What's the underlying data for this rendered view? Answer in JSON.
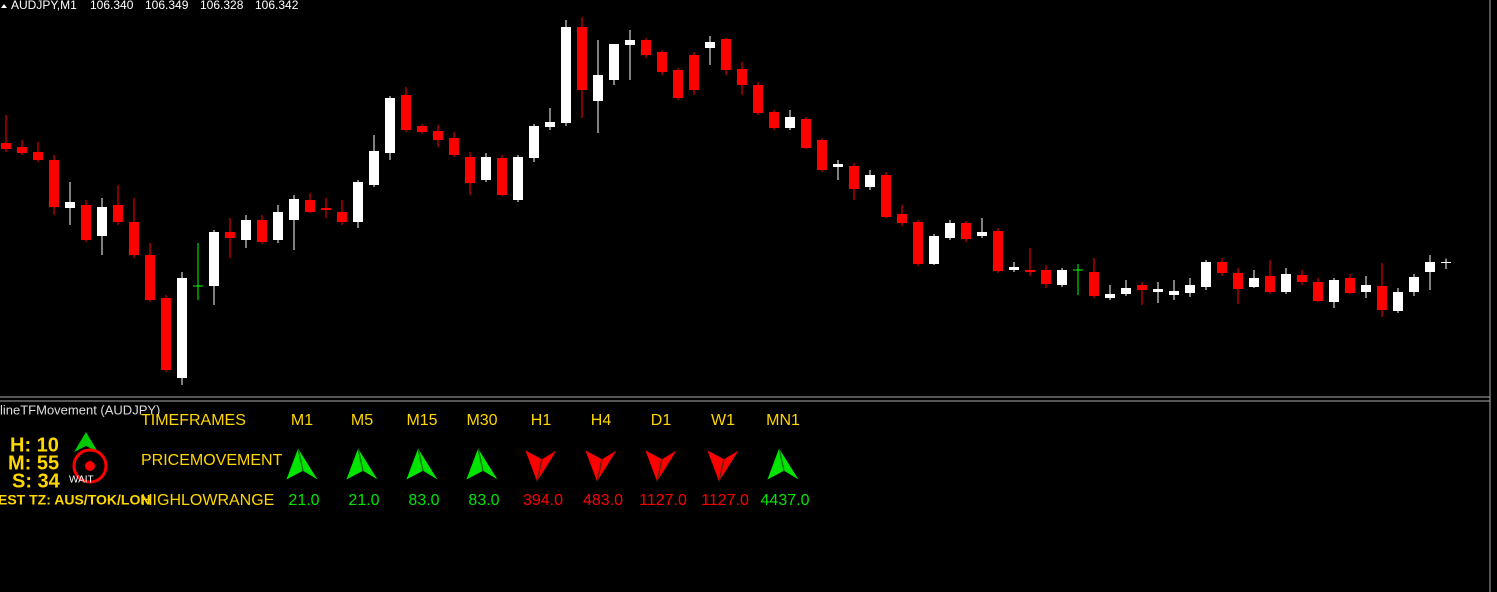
{
  "header": {
    "symbol": "AUDJPY,M1",
    "quote": [
      "106.340",
      "106.349",
      "106.328",
      "106.342"
    ]
  },
  "candles": {
    "ylim": [
      106.076,
      106.866
    ],
    "colors": {
      "up": "#ffffff",
      "down": "#ff0000",
      "flat": "#00ff00"
    },
    "items": [
      [
        106.58,
        106.636,
        106.562,
        106.568
      ],
      [
        106.572,
        106.586,
        106.556,
        106.56
      ],
      [
        106.562,
        106.582,
        106.542,
        106.546
      ],
      [
        106.546,
        106.556,
        106.436,
        106.452
      ],
      [
        106.45,
        106.502,
        106.416,
        106.462
      ],
      [
        106.456,
        106.466,
        106.382,
        106.386
      ],
      [
        106.394,
        106.47,
        106.356,
        106.452
      ],
      [
        106.456,
        106.496,
        106.416,
        106.422
      ],
      [
        106.422,
        106.47,
        106.35,
        106.356
      ],
      [
        106.356,
        106.38,
        106.262,
        106.266
      ],
      [
        106.27,
        106.276,
        106.122,
        106.126
      ],
      [
        106.11,
        106.322,
        106.096,
        106.31
      ],
      [
        106.294,
        106.38,
        106.266,
        106.294
      ],
      [
        106.294,
        106.406,
        106.256,
        106.402
      ],
      [
        106.402,
        106.43,
        106.35,
        106.39
      ],
      [
        106.386,
        106.436,
        106.37,
        106.426
      ],
      [
        106.426,
        106.436,
        106.378,
        106.382
      ],
      [
        106.386,
        106.456,
        106.38,
        106.442
      ],
      [
        106.426,
        106.476,
        106.366,
        106.468
      ],
      [
        106.466,
        106.48,
        106.44,
        106.442
      ],
      [
        106.45,
        106.47,
        106.43,
        106.446
      ],
      [
        106.442,
        106.466,
        106.416,
        106.422
      ],
      [
        106.422,
        106.506,
        106.41,
        106.502
      ],
      [
        106.496,
        106.596,
        106.492,
        106.564
      ],
      [
        106.56,
        106.674,
        106.546,
        106.67
      ],
      [
        106.676,
        106.692,
        106.602,
        106.606
      ],
      [
        106.614,
        106.618,
        106.598,
        106.602
      ],
      [
        106.604,
        106.616,
        106.572,
        106.586
      ],
      [
        106.59,
        106.602,
        106.552,
        106.556
      ],
      [
        106.552,
        106.562,
        106.476,
        106.5
      ],
      [
        106.506,
        106.56,
        106.502,
        106.552
      ],
      [
        106.55,
        106.556,
        106.474,
        106.476
      ],
      [
        106.466,
        106.556,
        106.462,
        106.552
      ],
      [
        106.55,
        106.618,
        106.542,
        106.614
      ],
      [
        106.612,
        106.65,
        106.606,
        106.622
      ],
      [
        106.62,
        106.826,
        106.614,
        106.812
      ],
      [
        106.812,
        106.832,
        106.63,
        106.686
      ],
      [
        106.664,
        106.786,
        106.6,
        106.716
      ],
      [
        106.706,
        106.778,
        106.696,
        106.778
      ],
      [
        106.776,
        106.806,
        106.706,
        106.786
      ],
      [
        106.786,
        106.79,
        106.75,
        106.756
      ],
      [
        106.762,
        106.766,
        106.716,
        106.722
      ],
      [
        106.726,
        106.73,
        106.666,
        106.67
      ],
      [
        106.756,
        106.762,
        106.676,
        106.686
      ],
      [
        106.77,
        106.794,
        106.736,
        106.782
      ],
      [
        106.788,
        106.79,
        106.716,
        106.726
      ],
      [
        106.728,
        106.742,
        106.676,
        106.696
      ],
      [
        106.696,
        106.702,
        106.636,
        106.64
      ],
      [
        106.642,
        106.646,
        106.606,
        106.61
      ],
      [
        106.61,
        106.646,
        106.606,
        106.632
      ],
      [
        106.628,
        106.632,
        106.568,
        106.57
      ],
      [
        106.586,
        106.59,
        106.522,
        106.526
      ],
      [
        106.532,
        106.546,
        106.506,
        106.538
      ],
      [
        106.534,
        106.54,
        106.466,
        106.488
      ],
      [
        106.492,
        106.526,
        106.486,
        106.516
      ],
      [
        106.516,
        106.522,
        106.43,
        106.432
      ],
      [
        106.438,
        106.456,
        106.414,
        106.42
      ],
      [
        106.422,
        106.426,
        106.334,
        106.338
      ],
      [
        106.338,
        106.398,
        106.336,
        106.394
      ],
      [
        106.39,
        106.426,
        106.386,
        106.42
      ],
      [
        106.42,
        106.424,
        106.382,
        106.388
      ],
      [
        106.394,
        106.43,
        106.39,
        106.402
      ],
      [
        106.404,
        106.41,
        106.32,
        106.324
      ],
      [
        106.326,
        106.342,
        106.322,
        106.332
      ],
      [
        106.326,
        106.37,
        106.314,
        106.322
      ],
      [
        106.326,
        106.336,
        106.29,
        106.298
      ],
      [
        106.296,
        106.33,
        106.292,
        106.326
      ],
      [
        106.326,
        106.338,
        106.276,
        106.326
      ],
      [
        106.322,
        106.35,
        106.27,
        106.274
      ],
      [
        106.27,
        106.296,
        106.266,
        106.278
      ],
      [
        106.278,
        106.306,
        106.274,
        106.29
      ],
      [
        106.296,
        106.302,
        106.256,
        106.286
      ],
      [
        106.282,
        106.302,
        106.26,
        106.288
      ],
      [
        106.276,
        106.306,
        106.266,
        106.284
      ],
      [
        106.28,
        106.31,
        106.272,
        106.296
      ],
      [
        106.292,
        106.346,
        106.286,
        106.342
      ],
      [
        106.342,
        106.35,
        106.314,
        106.32
      ],
      [
        106.32,
        106.33,
        106.258,
        106.288
      ],
      [
        106.292,
        106.326,
        106.29,
        106.31
      ],
      [
        106.314,
        106.346,
        106.278,
        106.282
      ],
      [
        106.282,
        106.33,
        106.278,
        106.318
      ],
      [
        106.316,
        106.326,
        106.296,
        106.302
      ],
      [
        106.302,
        106.31,
        106.262,
        106.264
      ],
      [
        106.262,
        106.31,
        106.25,
        106.306
      ],
      [
        106.31,
        106.318,
        106.278,
        106.28
      ],
      [
        106.282,
        106.314,
        106.27,
        106.296
      ],
      [
        106.294,
        106.34,
        106.232,
        106.246
      ],
      [
        106.244,
        106.29,
        106.24,
        106.282
      ],
      [
        106.282,
        106.318,
        106.274,
        106.312
      ],
      [
        106.322,
        106.356,
        106.286,
        106.342
      ],
      [
        106.34,
        106.349,
        106.328,
        106.342
      ]
    ]
  },
  "indicator": {
    "title": "lineTFMovement (AUDJPY)",
    "clock": [
      "H: 10",
      "M: 55",
      "S: 34"
    ],
    "signal": "WAIT",
    "timezone": "EST TZ:  AUS/TOK/LON",
    "row_labels": [
      "TIMEFRAMES",
      "PRICEMOVEMENT",
      "HIGHLOWRANGE"
    ],
    "colors": {
      "up": "#00e600",
      "down": "#ff0000"
    },
    "timeframes": [
      {
        "name": "M1",
        "direction": "up",
        "range": "21.0"
      },
      {
        "name": "M5",
        "direction": "up",
        "range": "21.0"
      },
      {
        "name": "M15",
        "direction": "up",
        "range": "83.0"
      },
      {
        "name": "M30",
        "direction": "up",
        "range": "83.0"
      },
      {
        "name": "H1",
        "direction": "down",
        "range": "394.0"
      },
      {
        "name": "H4",
        "direction": "down",
        "range": "483.0"
      },
      {
        "name": "D1",
        "direction": "down",
        "range": "1127.0"
      },
      {
        "name": "W1",
        "direction": "down",
        "range": "1127.0"
      },
      {
        "name": "MN1",
        "direction": "up",
        "range": "4437.0"
      }
    ]
  }
}
